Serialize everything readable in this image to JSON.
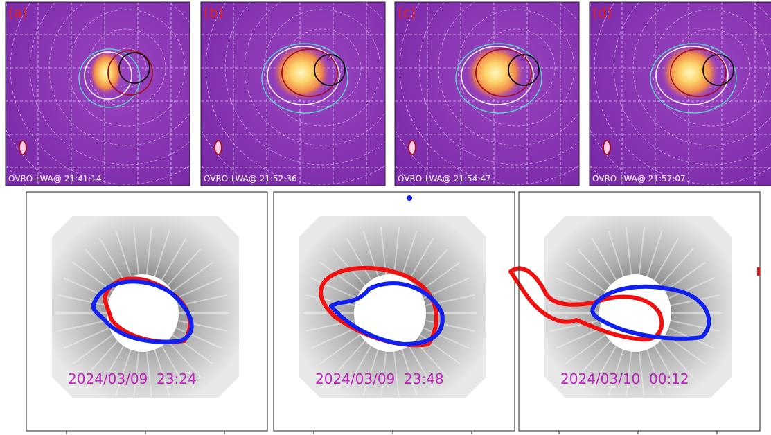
{
  "top_panels": [
    {
      "label": "(a)",
      "caption": "OVRO-LWA@ 21:41:14"
    },
    {
      "label": "(b)",
      "caption": "OVRO-LWA@ 21:52:36"
    },
    {
      "label": "(c)",
      "caption": "OVRO-LWA@ 21:54:47"
    },
    {
      "label": "(d)",
      "caption": "OVRO-LWA@ 21:57:07"
    }
  ],
  "bottom_panels": [
    {
      "caption": "2024/03/09  23:24"
    },
    {
      "caption": "2024/03/09  23:48"
    },
    {
      "caption": "2024/03/10  00:12"
    }
  ]
}
